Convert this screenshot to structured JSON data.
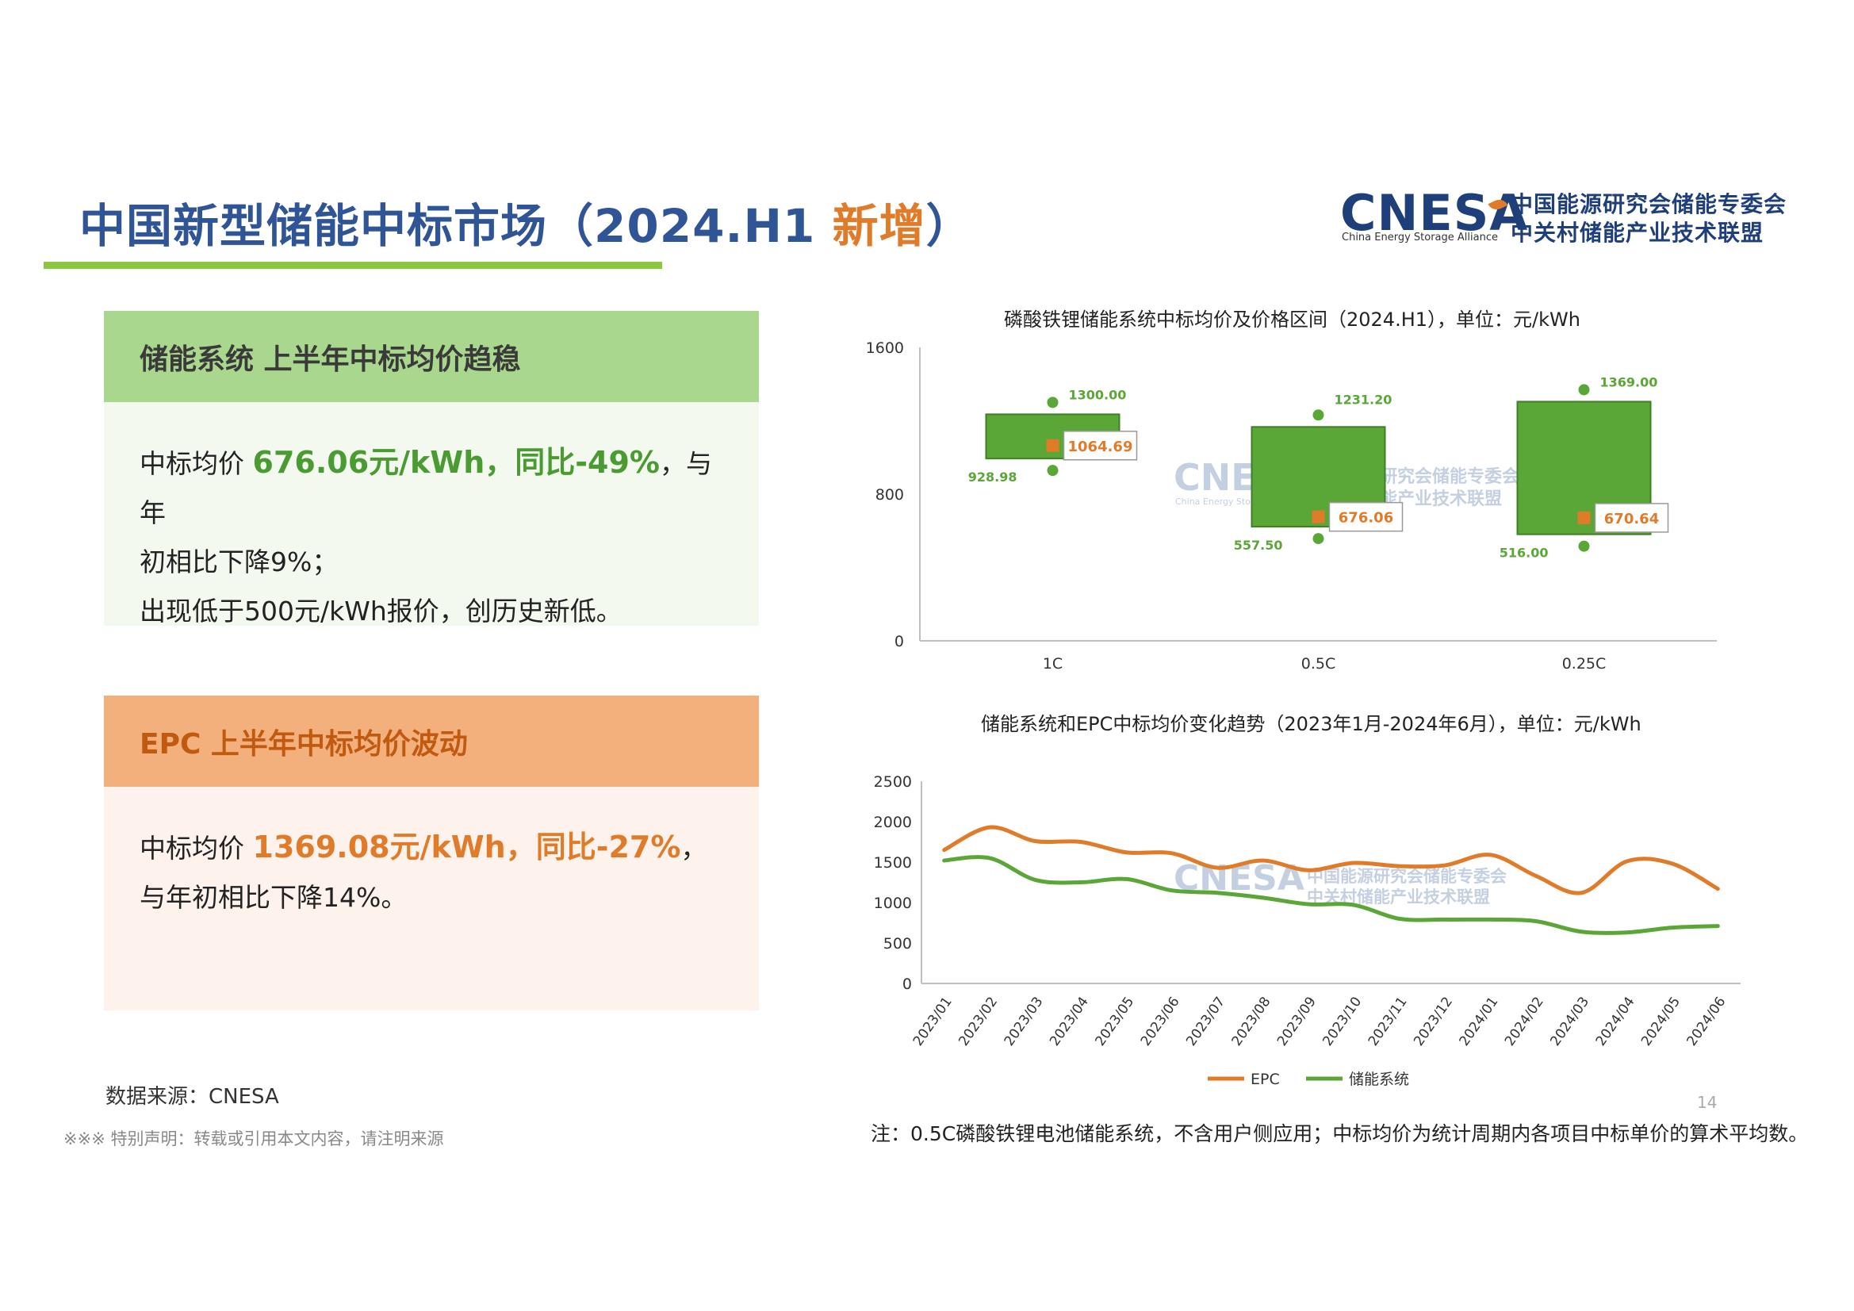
{
  "page": {
    "title_main": "中国新型储能中标市场（2024.H1 ",
    "title_highlight": "新增",
    "title_end": "）",
    "page_number": "14"
  },
  "logo": {
    "brand": "CNESA",
    "brand_sub": "China Energy Storage Alliance",
    "cn_line1": "中国能源研究会储能专委会",
    "cn_line2": "中关村储能产业技术联盟"
  },
  "panel_storage": {
    "heading": "储能系统  上半年中标均价趋稳",
    "line1_prefix": "中标均价 ",
    "line1_highlight": "676.06元/kWh，同比-49%",
    "line1_suffix": "，与年",
    "line2": "初相比下降9%；",
    "line3": "出现低于500元/kWh报价，创历史新低。"
  },
  "panel_epc": {
    "heading": "EPC   上半年中标均价波动",
    "line1_prefix": "中标均价 ",
    "line1_highlight": "1369.08元/kWh，同比-27%",
    "line1_suffix": "，",
    "line2": "与年初相比下降14%。"
  },
  "footer": {
    "source": "数据来源：CNESA",
    "disclaimer": "※※※ 特别声明：转载或引用本文内容，请注明来源",
    "note": "注：0.5C磷酸铁锂电池储能系统，不含用户侧应用；中标均价为统计周期内各项目中标单价的算术平均数。"
  },
  "chart_data": [
    {
      "type": "box",
      "title": "磷酸铁锂储能系统中标均价及价格区间（2024.H1），单位：元/kWh",
      "ylim": [
        0,
        1600
      ],
      "yticks": [
        0,
        800,
        1600
      ],
      "grid": false,
      "categories": [
        "1C",
        "0.5C",
        "0.25C"
      ],
      "max": [
        1300.0,
        1231.2,
        1369.0
      ],
      "min": [
        928.98,
        557.5,
        516.0
      ],
      "mean": [
        1064.69,
        676.06,
        670.64
      ],
      "max_labels": [
        "1300.00",
        "1231.20",
        "1369.00"
      ],
      "min_labels": [
        "928.98",
        "557.50",
        "516.00"
      ],
      "mean_labels": [
        "1064.69",
        "676.06",
        "670.64"
      ],
      "colors": {
        "box": "#5aa637",
        "mean": "#e07b2a"
      },
      "watermark": {
        "brand": "CNESA",
        "sub": "China Energy Storage Alliance",
        "cn_line1": "中国能源研究会储能专委会",
        "cn_line2": "中关村储能产业技术联盟"
      }
    },
    {
      "type": "line",
      "title": "储能系统和EPC中标均价变化趋势（2023年1月-2024年6月），单位：元/kWh",
      "ylim": [
        0,
        2500
      ],
      "yticks": [
        0,
        500,
        1000,
        1500,
        2000,
        2500
      ],
      "legend": "bottom",
      "grid": false,
      "x": [
        "2023/01",
        "2023/02",
        "2023/03",
        "2023/04",
        "2023/05",
        "2023/06",
        "2023/07",
        "2023/08",
        "2023/09",
        "2023/10",
        "2023/11",
        "2023/12",
        "2024/01",
        "2024/02",
        "2024/03",
        "2024/04",
        "2024/05",
        "2024/06"
      ],
      "series": [
        {
          "name": "EPC",
          "color": "#e07b2a",
          "values": [
            1650,
            1930,
            1760,
            1750,
            1620,
            1610,
            1430,
            1520,
            1400,
            1490,
            1450,
            1460,
            1590,
            1330,
            1120,
            1510,
            1480,
            1170
          ]
        },
        {
          "name": "储能系统",
          "color": "#5aa637",
          "values": [
            1520,
            1550,
            1280,
            1250,
            1290,
            1150,
            1120,
            1060,
            980,
            970,
            800,
            790,
            790,
            770,
            640,
            630,
            690,
            710
          ]
        }
      ],
      "watermark": {
        "brand": "CNESA",
        "cn_line1": "中国能源研究会储能专委会",
        "cn_line2": "中关村储能产业技术联盟"
      }
    }
  ]
}
